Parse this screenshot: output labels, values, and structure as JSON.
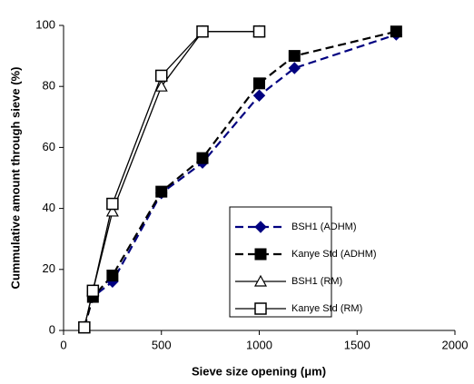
{
  "chart_data": {
    "type": "line",
    "x_label": "Sieve size opening (μm)",
    "y_label": "Cummulative amount through sieve (%)",
    "x": [
      106,
      150,
      250,
      500,
      710,
      1000,
      1180,
      1700
    ],
    "series": [
      {
        "name": "BSH1 (ADHM)",
        "color": "#000080",
        "line_style": "dashed",
        "marker": "diamond",
        "values": [
          1,
          11,
          16,
          45,
          55,
          77,
          86,
          97
        ]
      },
      {
        "name": "Kanye Std (ADHM)",
        "color": "#000000",
        "line_style": "dashed",
        "marker": "square",
        "values": [
          1,
          11,
          18,
          45.5,
          56.5,
          81,
          90,
          98
        ]
      },
      {
        "name": "BSH1 (RM)",
        "color": "#000000",
        "line_style": "solid",
        "marker": "open-triangle",
        "values": [
          1,
          13,
          39,
          80,
          98,
          98,
          null,
          null
        ]
      },
      {
        "name": "Kanye Std (RM)",
        "color": "#000000",
        "line_style": "solid",
        "marker": "open-square",
        "values": [
          1,
          13,
          41.5,
          83.5,
          98,
          98,
          null,
          null
        ]
      }
    ],
    "xlim": [
      0,
      2000
    ],
    "xticks": [
      0,
      500,
      1000,
      1500,
      2000
    ],
    "ylim": [
      0,
      100
    ],
    "yticks": [
      0,
      20,
      40,
      60,
      80,
      100
    ],
    "legend_position": "lower right"
  }
}
